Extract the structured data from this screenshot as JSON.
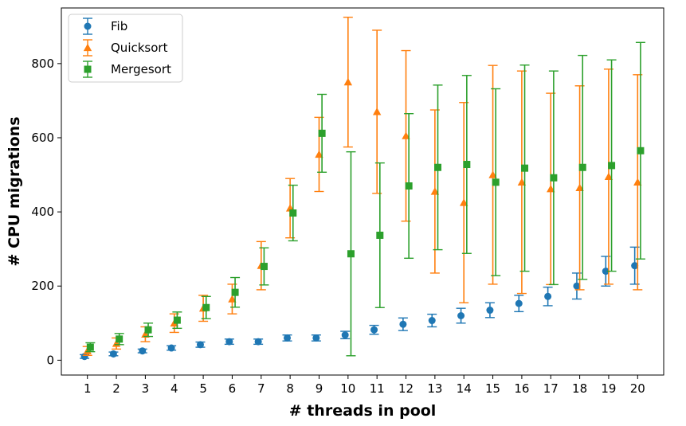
{
  "chart_data": {
    "type": "scatter",
    "title": "",
    "xlabel": "# threads in pool",
    "ylabel": "# CPU migrations",
    "x": [
      1,
      2,
      3,
      4,
      5,
      6,
      7,
      8,
      9,
      10,
      11,
      12,
      13,
      14,
      15,
      16,
      17,
      18,
      19,
      20
    ],
    "xlim": [
      0.1,
      20.9
    ],
    "ylim": [
      -40,
      950
    ],
    "yticks": [
      0,
      200,
      400,
      600,
      800
    ],
    "legend_position": "top-left",
    "error_bars": true,
    "series": [
      {
        "name": "Fib",
        "marker": "circle",
        "color": "#1f77b4",
        "offset": -0.1,
        "values": [
          10,
          17,
          25,
          33,
          42,
          50,
          50,
          60,
          60,
          68,
          82,
          97,
          107,
          120,
          135,
          153,
          172,
          200,
          240,
          255
        ],
        "err": [
          5,
          5,
          5,
          6,
          7,
          7,
          7,
          8,
          8,
          10,
          12,
          17,
          17,
          20,
          20,
          22,
          25,
          35,
          40,
          50
        ]
      },
      {
        "name": "Quicksort",
        "marker": "triangle",
        "color": "#ff7f0e",
        "offset": 0.0,
        "values": [
          25,
          45,
          70,
          100,
          140,
          165,
          255,
          410,
          555,
          750,
          670,
          605,
          455,
          425,
          500,
          480,
          462,
          465,
          495,
          480
        ],
        "err": [
          12,
          15,
          20,
          25,
          35,
          40,
          65,
          80,
          100,
          175,
          220,
          230,
          220,
          270,
          295,
          300,
          258,
          275,
          290,
          290
        ]
      },
      {
        "name": "Mergesort",
        "marker": "square",
        "color": "#2ca02c",
        "offset": 0.1,
        "values": [
          35,
          57,
          82,
          108,
          142,
          183,
          253,
          397,
          612,
          287,
          337,
          470,
          520,
          528,
          480,
          518,
          492,
          520,
          525,
          565
        ],
        "err": [
          12,
          15,
          18,
          22,
          30,
          40,
          50,
          75,
          105,
          275,
          195,
          195,
          222,
          240,
          252,
          278,
          288,
          302,
          285,
          292
        ]
      }
    ]
  }
}
